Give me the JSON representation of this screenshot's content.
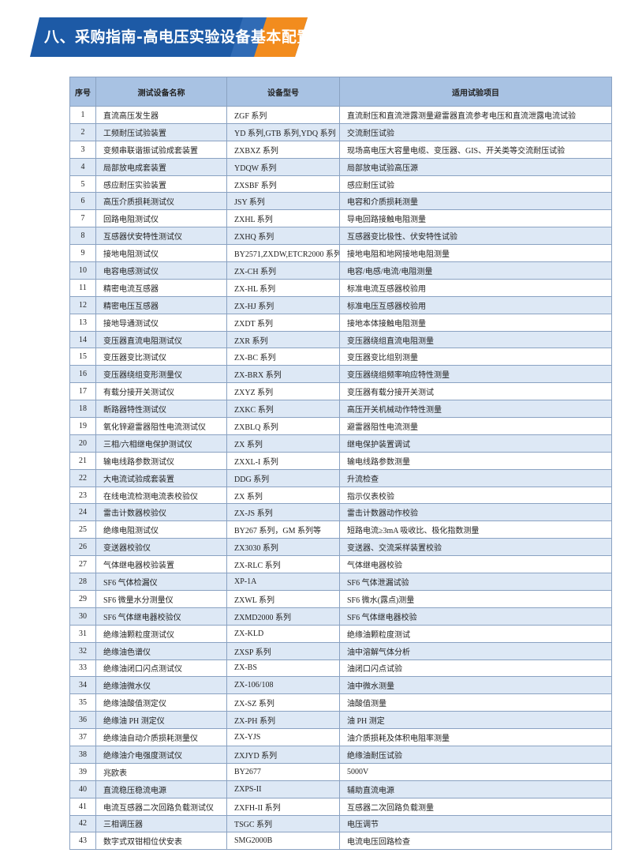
{
  "header": {
    "title": "八、采购指南-高电压实验设备基本配置"
  },
  "table": {
    "columns": [
      "序号",
      "测试设备名称",
      "设备型号",
      "适用试验项目"
    ],
    "rows": [
      [
        "1",
        "直流高压发生器",
        "ZGF 系列",
        "直流耐压和直流泄露测量避雷器直流参考电压和直流泄露电流试验"
      ],
      [
        "2",
        "工频耐压试验装置",
        "YD 系列,GTB 系列,YDQ 系列",
        "交流耐压试验"
      ],
      [
        "3",
        "变频串联谐振试验成套装置",
        "ZXBXZ 系列",
        "现场高电压大容量电缆、变压器、GIS、开关类等交流耐压试验"
      ],
      [
        "4",
        "局部放电成套装置",
        "YDQW 系列",
        "局部放电试验高压源"
      ],
      [
        "5",
        "感应耐压实验装置",
        "ZXSBF 系列",
        "感应耐压试验"
      ],
      [
        "6",
        "高压介质损耗测试仪",
        "JSY 系列",
        "电容和介质损耗测量"
      ],
      [
        "7",
        "回路电阻测试仪",
        "ZXHL 系列",
        "导电回路接触电阻测量"
      ],
      [
        "8",
        "互感器伏安特性测试仪",
        "ZXHQ 系列",
        "互感器变比极性、伏安特性试验"
      ],
      [
        "9",
        "接地电阻测试仪",
        "BY2571,ZXDW,ETCR2000 系列",
        "接地电阻和地网接地电阻测量"
      ],
      [
        "10",
        "电容电感测试仪",
        "ZX-CH 系列",
        "电容/电感/电流/电阻测量"
      ],
      [
        "11",
        "精密电流互感器",
        "ZX-HL 系列",
        "标准电流互感器校验用"
      ],
      [
        "12",
        "精密电压互感器",
        "ZX-HJ 系列",
        "标准电压互感器校验用"
      ],
      [
        "13",
        "接地导通测试仪",
        "ZXDT 系列",
        "接地本体接触电阻测量"
      ],
      [
        "14",
        "变压器直流电阻测试仪",
        "ZXR 系列",
        "变压器绕组直流电阻测量"
      ],
      [
        "15",
        "变压器变比测试仪",
        "ZX-BC 系列",
        "变压器变比组别测量"
      ],
      [
        "16",
        "变压器绕组变形测量仪",
        "ZX-BRX 系列",
        "变压器绕组频率响应特性测量"
      ],
      [
        "17",
        "有载分接开关测试仪",
        "ZXYZ 系列",
        "变压器有载分接开关测试"
      ],
      [
        "18",
        "断路器特性测试仪",
        "ZXKC 系列",
        "高压开关机械动作特性测量"
      ],
      [
        "19",
        "氧化锌避雷器阻性电流测试仪",
        "ZXBLQ 系列",
        "避雷器阻性电流测量"
      ],
      [
        "20",
        "三相/六相继电保护测试仪",
        "ZX 系列",
        "继电保护装置调试"
      ],
      [
        "21",
        "输电线路参数测试仪",
        "ZXXL-I 系列",
        "输电线路参数测量"
      ],
      [
        "22",
        "大电流试验成套装置",
        "DDG 系列",
        "升流检查"
      ],
      [
        "23",
        "在线电流检测电流表校验仪",
        "ZX 系列",
        "指示仪表校验"
      ],
      [
        "24",
        "雷击计数器校验仪",
        "ZX-JS 系列",
        "雷击计数器动作校验"
      ],
      [
        "25",
        "绝缘电阻测试仪",
        "BY267 系列，GM 系列等",
        "短路电流≥3mA 吸收比、极化指数测量"
      ],
      [
        "26",
        "变送器校验仪",
        "ZX3030 系列",
        "变送器、交流采样装置校验"
      ],
      [
        "27",
        "气体继电器校验装置",
        "ZX-RLC 系列",
        "气体继电器校验"
      ],
      [
        "28",
        "SF6 气体检漏仪",
        "XP-1A",
        "SF6 气体泄漏试验"
      ],
      [
        "29",
        "SF6 微量水分测量仪",
        "ZXWL 系列",
        "SF6 微水(露点)测量"
      ],
      [
        "30",
        "SF6 气体继电器校验仪",
        "ZXMD2000 系列",
        "SF6 气体继电器校验"
      ],
      [
        "31",
        "绝缘油颗粒度测试仪",
        "ZX-KLD",
        "绝缘油颗粒度测试"
      ],
      [
        "32",
        "绝缘油色谱仪",
        "ZXSP 系列",
        "油中溶解气体分析"
      ],
      [
        "33",
        "绝缘油闭口闪点测试仪",
        "ZX-BS",
        "油闭口闪点试验"
      ],
      [
        "34",
        "绝缘油微水仪",
        "ZX-106/108",
        "油中微水测量"
      ],
      [
        "35",
        "绝缘油酸值测定仪",
        "ZX-SZ 系列",
        "油酸值测量"
      ],
      [
        "36",
        "绝缘油 PH 测定仪",
        "ZX-PH 系列",
        "油 PH 测定"
      ],
      [
        "37",
        "绝缘油自动介质损耗测量仪",
        "ZX-YJS",
        "油介质损耗及体积电阻率测量"
      ],
      [
        "38",
        "绝缘油介电强度测试仪",
        "ZXJYD 系列",
        "绝缘油耐压试验"
      ],
      [
        "39",
        "兆欧表",
        "BY2677",
        "5000V"
      ],
      [
        "40",
        "直流稳压稳流电源",
        "ZXPS-II",
        "辅助直流电源"
      ],
      [
        "41",
        "电流互感器二次回路负载测试仪",
        "ZXFH-II 系列",
        "互感器二次回路负载测量"
      ],
      [
        "42",
        "三相调压器",
        "TSGC 系列",
        "电压调节"
      ],
      [
        "43",
        "数字式双钳相位伏安表",
        "SMG2000B",
        "电流电压回路检查"
      ]
    ]
  }
}
